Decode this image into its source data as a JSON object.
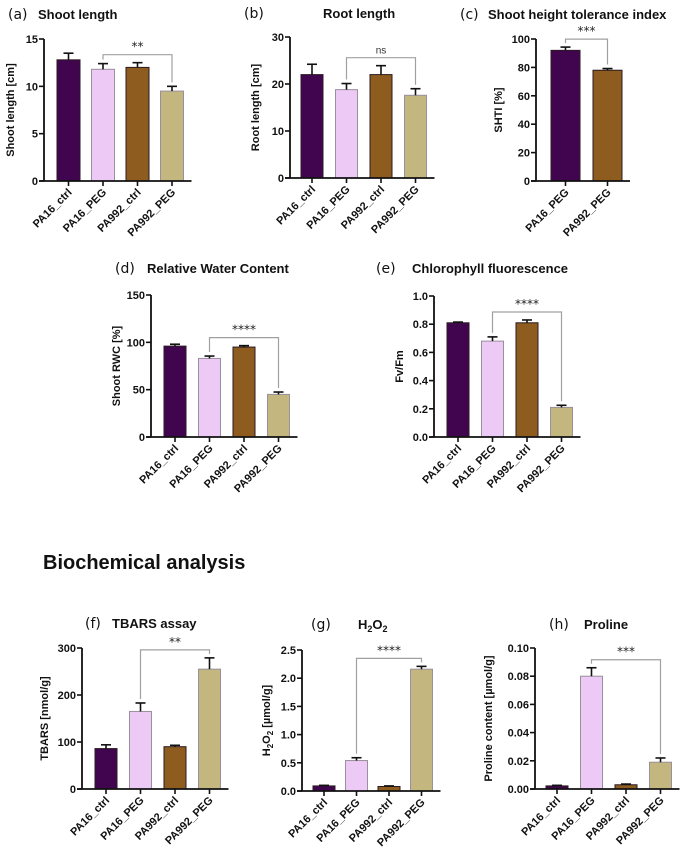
{
  "section_title": "Biochemical analysis",
  "colors": {
    "PA16_ctrl": "#41054f",
    "PA16_PEG": "#edc9f5",
    "PA992_ctrl": "#8e5c1f",
    "PA992_PEG": "#c3b77f",
    "bracket": "#a0a0a0",
    "axis": "#111111"
  },
  "chart_data": [
    {
      "id": "a",
      "panel_label": "(a)",
      "title": "Shoot length",
      "type": "bar",
      "ylabel": "Shoot length [cm]",
      "ylim": [
        0,
        15
      ],
      "yticks": [
        "0",
        "5",
        "10",
        "15"
      ],
      "ytick_values": [
        0,
        5,
        10,
        15
      ],
      "categories": [
        "PA16_ctrl",
        "PA16_PEG",
        "PA992_ctrl",
        "PA992_PEG"
      ],
      "values": [
        12.8,
        11.8,
        12.0,
        9.5
      ],
      "errors": [
        0.7,
        0.6,
        0.5,
        0.5
      ],
      "significance": {
        "from": "PA16_PEG",
        "to": "PA992_PEG",
        "label": "**"
      }
    },
    {
      "id": "b",
      "panel_label": "(b)",
      "title": "Root length",
      "type": "bar",
      "ylabel": "Root length [cm]",
      "ylim": [
        0,
        30
      ],
      "yticks": [
        "0",
        "10",
        "20",
        "30"
      ],
      "ytick_values": [
        0,
        10,
        20,
        30
      ],
      "categories": [
        "PA16_ctrl",
        "PA16_PEG",
        "PA992_ctrl",
        "PA992_PEG"
      ],
      "values": [
        22.0,
        18.8,
        22.0,
        17.6
      ],
      "errors": [
        2.2,
        1.3,
        1.9,
        1.4
      ],
      "significance": {
        "from": "PA16_PEG",
        "to": "PA992_PEG",
        "label": "ns"
      }
    },
    {
      "id": "c",
      "panel_label": "(c)",
      "title": "Shoot height tolerance index",
      "type": "bar",
      "ylabel": "SHTI [%]",
      "ylim": [
        0,
        100
      ],
      "yticks": [
        "0",
        "20",
        "40",
        "60",
        "80",
        "100"
      ],
      "ytick_values": [
        0,
        20,
        40,
        60,
        80,
        100
      ],
      "categories": [
        "PA16_PEG",
        "PA992_PEG"
      ],
      "values": [
        92,
        78
      ],
      "errors": [
        2.3,
        1.2
      ],
      "bar_colors": [
        "PA16_ctrl",
        "PA992_ctrl"
      ],
      "significance": {
        "from": "PA16_PEG",
        "to": "PA992_PEG",
        "label": "***"
      }
    },
    {
      "id": "d",
      "panel_label": "(d)",
      "title": "Relative Water Content",
      "type": "bar",
      "ylabel": "Shoot RWC [%]",
      "ylim": [
        0,
        150
      ],
      "yticks": [
        "0",
        "50",
        "100",
        "150"
      ],
      "ytick_values": [
        0,
        50,
        100,
        150
      ],
      "categories": [
        "PA16_ctrl",
        "PA16_PEG",
        "PA992_ctrl",
        "PA992_PEG"
      ],
      "values": [
        96,
        83,
        95,
        45
      ],
      "errors": [
        2,
        2.5,
        1.5,
        2.5
      ],
      "significance": {
        "from": "PA16_PEG",
        "to": "PA992_PEG",
        "label": "****"
      }
    },
    {
      "id": "e",
      "panel_label": "(e)",
      "title": "Chlorophyll fluorescence",
      "type": "bar",
      "ylabel": "Fv/Fm",
      "ylim": [
        0,
        1.0
      ],
      "yticks": [
        "0.0",
        "0.2",
        "0.4",
        "0.6",
        "0.8",
        "1.0"
      ],
      "ytick_values": [
        0,
        0.2,
        0.4,
        0.6,
        0.8,
        1.0
      ],
      "categories": [
        "PA16_ctrl",
        "PA16_PEG",
        "PA992_ctrl",
        "PA992_PEG"
      ],
      "values": [
        0.81,
        0.68,
        0.81,
        0.21
      ],
      "errors": [
        0.005,
        0.03,
        0.02,
        0.015
      ],
      "significance": {
        "from": "PA16_PEG",
        "to": "PA992_PEG",
        "label": "****"
      }
    },
    {
      "id": "f",
      "panel_label": "(f)",
      "title": "TBARS assay",
      "type": "bar",
      "ylabel": "TBARS [nmol/g]",
      "ylim": [
        0,
        300
      ],
      "yticks": [
        "0",
        "100",
        "200",
        "300"
      ],
      "ytick_values": [
        0,
        100,
        200,
        300
      ],
      "categories": [
        "PA16_ctrl",
        "PA16_PEG",
        "PA992_ctrl",
        "PA992_PEG"
      ],
      "values": [
        86,
        165,
        90,
        255
      ],
      "errors": [
        8,
        18,
        3,
        24
      ],
      "significance": {
        "from": "PA16_PEG",
        "to": "PA992_PEG",
        "label": "**"
      }
    },
    {
      "id": "g",
      "panel_label": "(g)",
      "title": "H2O2",
      "type": "bar",
      "ylabel": "H2O2 [µmol/g]",
      "ylim": [
        0,
        2.5
      ],
      "yticks": [
        "0.0",
        "0.5",
        "1.0",
        "1.5",
        "2.0",
        "2.5"
      ],
      "ytick_values": [
        0,
        0.5,
        1.0,
        1.5,
        2.0,
        2.5
      ],
      "categories": [
        "PA16_ctrl",
        "PA16_PEG",
        "PA992_ctrl",
        "PA992_PEG"
      ],
      "values": [
        0.09,
        0.54,
        0.08,
        2.16
      ],
      "errors": [
        0.01,
        0.05,
        0.01,
        0.05
      ],
      "significance": {
        "from": "PA16_PEG",
        "to": "PA992_PEG",
        "label": "****"
      }
    },
    {
      "id": "h",
      "panel_label": "(h)",
      "title": "Proline",
      "type": "bar",
      "ylabel": "Proline content [µmol/g]",
      "ylim": [
        0,
        0.1
      ],
      "yticks": [
        "0.00",
        "0.02",
        "0.04",
        "0.06",
        "0.08",
        "0.10"
      ],
      "ytick_values": [
        0,
        0.02,
        0.04,
        0.06,
        0.08,
        0.1
      ],
      "categories": [
        "PA16_ctrl",
        "PA16_PEG",
        "PA992_ctrl",
        "PA992_PEG"
      ],
      "values": [
        0.0022,
        0.08,
        0.003,
        0.019
      ],
      "errors": [
        0.0004,
        0.006,
        0.0005,
        0.003
      ],
      "significance": {
        "from": "PA16_PEG",
        "to": "PA992_PEG",
        "label": "***"
      }
    }
  ]
}
